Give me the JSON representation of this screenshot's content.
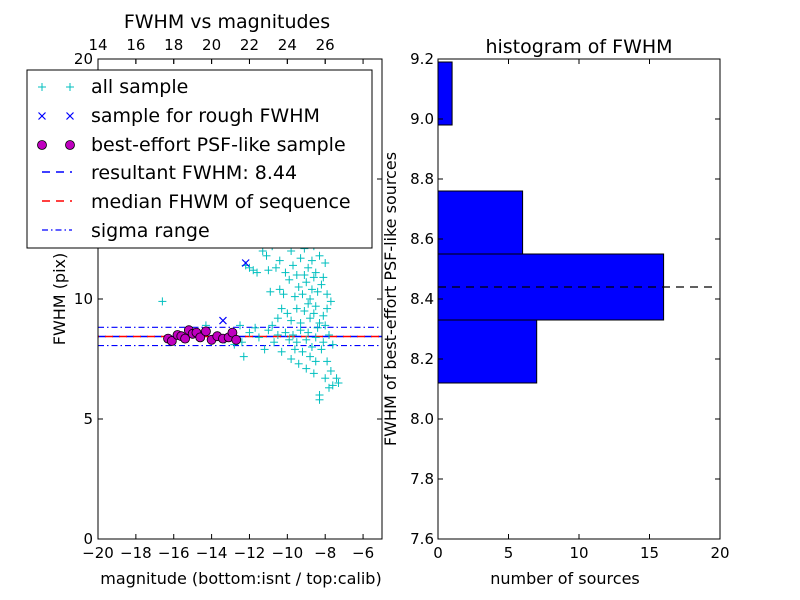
{
  "chart_data": [
    {
      "type": "scatter",
      "title": "FWHM vs magnitudes",
      "xlabel": "magnitude (bottom:isnt / top:calib)",
      "ylabel": "FWHM (pix)",
      "xlim": [
        -20,
        -5
      ],
      "ylim": [
        0,
        20
      ],
      "x_ticks": [
        -20,
        -18,
        -16,
        -14,
        -12,
        -10,
        -8,
        -6
      ],
      "x_tick_labels": [
        "−20",
        "−18",
        "−16",
        "−14",
        "−12",
        "−10",
        "−8",
        "−6"
      ],
      "y_ticks": [
        0,
        5,
        10,
        15,
        20
      ],
      "y_tick_labels": [
        "0",
        "5",
        "10",
        "15",
        "20"
      ],
      "top_axis": {
        "offset": 34,
        "ticks": [
          14,
          16,
          18,
          20,
          22,
          24,
          26
        ],
        "tick_labels": [
          "14",
          "16",
          "18",
          "20",
          "22",
          "24",
          "26"
        ]
      },
      "grid": false,
      "legend": "top-left",
      "series": [
        {
          "name": "all sample",
          "marker": "+",
          "color": "#00bfbf",
          "points": [
            [
              -16.6,
              9.9
            ],
            [
              -14.3,
              8.9
            ],
            [
              -13.6,
              8.4
            ],
            [
              -13.3,
              8.3
            ],
            [
              -12.8,
              8.1
            ],
            [
              -12.5,
              8.9
            ],
            [
              -12.4,
              8.2
            ],
            [
              -12.3,
              7.6
            ],
            [
              -12.2,
              11.4
            ],
            [
              -12.0,
              11.3
            ],
            [
              -12.0,
              8.6
            ],
            [
              -11.8,
              11.2
            ],
            [
              -11.7,
              8.8
            ],
            [
              -11.6,
              11.1
            ],
            [
              -11.5,
              8.4
            ],
            [
              -11.5,
              12.3
            ],
            [
              -11.3,
              12.0
            ],
            [
              -11.2,
              7.9
            ],
            [
              -11.1,
              11.8
            ],
            [
              -11.0,
              8.7
            ],
            [
              -11.0,
              11.2
            ],
            [
              -10.9,
              10.3
            ],
            [
              -10.8,
              12.2
            ],
            [
              -10.8,
              8.9
            ],
            [
              -10.7,
              8.2
            ],
            [
              -10.7,
              13.0
            ],
            [
              -10.6,
              11.3
            ],
            [
              -10.5,
              9.2
            ],
            [
              -10.5,
              8.5
            ],
            [
              -10.4,
              10.4
            ],
            [
              -10.4,
              11.6
            ],
            [
              -10.3,
              7.8
            ],
            [
              -10.3,
              9.6
            ],
            [
              -10.2,
              12.5
            ],
            [
              -10.2,
              10.2
            ],
            [
              -10.1,
              8.6
            ],
            [
              -10.1,
              11.1
            ],
            [
              -10.0,
              13.8
            ],
            [
              -10.0,
              9.4
            ],
            [
              -9.9,
              8.3
            ],
            [
              -9.9,
              10.8
            ],
            [
              -9.8,
              7.5
            ],
            [
              -9.8,
              12.0
            ],
            [
              -9.8,
              9.1
            ],
            [
              -9.7,
              11.4
            ],
            [
              -9.7,
              8.5
            ],
            [
              -9.6,
              10.1
            ],
            [
              -9.6,
              13.2
            ],
            [
              -9.6,
              7.9
            ],
            [
              -9.5,
              9.6
            ],
            [
              -9.5,
              11.0
            ],
            [
              -9.5,
              8.2
            ],
            [
              -9.4,
              12.6
            ],
            [
              -9.4,
              10.5
            ],
            [
              -9.4,
              7.3
            ],
            [
              -9.3,
              19.0
            ],
            [
              -9.3,
              9.0
            ],
            [
              -9.3,
              11.7
            ],
            [
              -9.3,
              8.7
            ],
            [
              -9.2,
              10.2
            ],
            [
              -9.2,
              13.5
            ],
            [
              -9.2,
              7.8
            ],
            [
              -9.1,
              12.1
            ],
            [
              -9.1,
              9.5
            ],
            [
              -9.1,
              11.0
            ],
            [
              -9.0,
              8.3
            ],
            [
              -9.0,
              10.7
            ],
            [
              -9.0,
              14.2
            ],
            [
              -9.0,
              7.1
            ],
            [
              -8.9,
              9.8
            ],
            [
              -8.9,
              12.4
            ],
            [
              -8.9,
              8.6
            ],
            [
              -8.9,
              11.3
            ],
            [
              -8.8,
              10.0
            ],
            [
              -8.8,
              13.0
            ],
            [
              -8.8,
              7.6
            ],
            [
              -8.8,
              9.2
            ],
            [
              -8.7,
              12.8
            ],
            [
              -8.7,
              10.4
            ],
            [
              -8.7,
              8.0
            ],
            [
              -8.7,
              11.6
            ],
            [
              -8.6,
              9.4
            ],
            [
              -8.6,
              6.9
            ],
            [
              -8.6,
              12.2
            ],
            [
              -8.6,
              10.9
            ],
            [
              -8.5,
              8.4
            ],
            [
              -8.5,
              11.1
            ],
            [
              -8.5,
              9.7
            ],
            [
              -8.5,
              7.4
            ],
            [
              -8.4,
              13.4
            ],
            [
              -8.4,
              10.3
            ],
            [
              -8.4,
              8.8
            ],
            [
              -8.3,
              11.8
            ],
            [
              -8.3,
              9.0
            ],
            [
              -8.3,
              6.0
            ],
            [
              -8.3,
              5.8
            ],
            [
              -8.2,
              10.6
            ],
            [
              -8.2,
              7.9
            ],
            [
              -8.2,
              12.6
            ],
            [
              -8.1,
              9.3
            ],
            [
              -8.1,
              8.2
            ],
            [
              -8.1,
              10.9
            ],
            [
              -8.0,
              6.7
            ],
            [
              -8.0,
              8.9
            ],
            [
              -8.0,
              11.5
            ],
            [
              -7.9,
              7.4
            ],
            [
              -7.9,
              9.6
            ],
            [
              -7.9,
              10.2
            ],
            [
              -7.8,
              6.3
            ],
            [
              -7.8,
              8.5
            ],
            [
              -7.7,
              9.9
            ],
            [
              -7.7,
              7.0
            ],
            [
              -7.6,
              8.1
            ],
            [
              -7.6,
              6.4
            ],
            [
              -7.4,
              6.7
            ],
            [
              -7.3,
              6.5
            ]
          ]
        },
        {
          "name": "sample for rough FWHM",
          "marker": "x",
          "color": "#0000ff",
          "points": [
            [
              -14.6,
              8.5
            ],
            [
              -13.4,
              9.1
            ],
            [
              -12.2,
              11.5
            ]
          ]
        },
        {
          "name": "best-effort PSF-like sample",
          "marker": "o",
          "color": "#bf00bf",
          "points": [
            [
              -16.3,
              8.35
            ],
            [
              -16.1,
              8.25
            ],
            [
              -15.8,
              8.5
            ],
            [
              -15.6,
              8.45
            ],
            [
              -15.4,
              8.35
            ],
            [
              -15.2,
              8.7
            ],
            [
              -15.0,
              8.55
            ],
            [
              -14.8,
              8.6
            ],
            [
              -14.6,
              8.4
            ],
            [
              -14.3,
              8.65
            ],
            [
              -14.0,
              8.3
            ],
            [
              -13.7,
              8.45
            ],
            [
              -13.4,
              8.35
            ],
            [
              -13.1,
              8.4
            ],
            [
              -12.9,
              8.6
            ],
            [
              -12.7,
              8.3
            ]
          ]
        }
      ],
      "lines": [
        {
          "name": "resultant FWHM: 8.44",
          "y": 8.44,
          "style": "dashed",
          "color": "#0000ff"
        },
        {
          "name": "median FHWM of sequence",
          "y": 8.44,
          "style": "dashed",
          "color": "#ff0000"
        },
        {
          "name": "sigma range",
          "y": [
            8.06,
            8.82
          ],
          "style": "dashdot",
          "color": "#0000ff"
        }
      ]
    },
    {
      "type": "bar",
      "orientation": "horizontal",
      "title": "histogram of FWHM",
      "xlabel": "number of sources",
      "ylabel": "FWHM of best-effort PSF-like sources",
      "xlim": [
        0,
        20
      ],
      "ylim": [
        7.6,
        9.2
      ],
      "x_ticks": [
        0,
        5,
        10,
        15,
        20
      ],
      "x_tick_labels": [
        "0",
        "5",
        "10",
        "15",
        "20"
      ],
      "y_ticks": [
        7.6,
        7.8,
        8.0,
        8.2,
        8.4,
        8.6,
        8.8,
        9.0,
        9.2
      ],
      "y_tick_labels": [
        "7.6",
        "7.8",
        "8.0",
        "8.2",
        "8.4",
        "8.6",
        "8.8",
        "9.0",
        "9.2"
      ],
      "grid": false,
      "bar_color": "#0000ff",
      "bins": [
        {
          "low": 8.12,
          "high": 8.33,
          "count": 7
        },
        {
          "low": 8.33,
          "high": 8.55,
          "count": 16
        },
        {
          "low": 8.55,
          "high": 8.76,
          "count": 6
        },
        {
          "low": 8.76,
          "high": 8.98,
          "count": 0
        },
        {
          "low": 8.98,
          "high": 9.19,
          "count": 1
        }
      ],
      "reference_line": {
        "y": 8.44,
        "style": "dashed",
        "color": "#000000"
      }
    }
  ]
}
